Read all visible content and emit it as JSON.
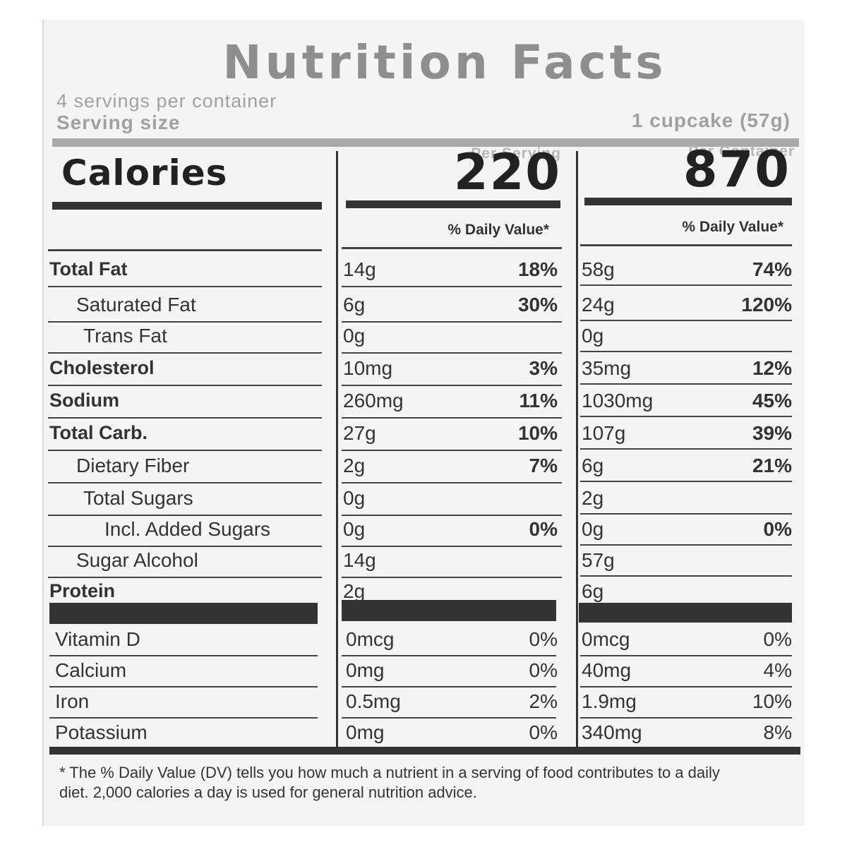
{
  "title": "Nutrition Facts",
  "servings_per_container": "4 servings per container",
  "serving_size_label": "Serving size",
  "serving_size_value": "1 cupcake (57g)",
  "per_serving_label": "Per Serving",
  "per_container_label": "Per Container",
  "calories_label": "Calories",
  "calories_per_serving": "220",
  "calories_per_container": "870",
  "dv_header": "% Daily Value*",
  "nutrients": [
    {
      "name": "Total Fat",
      "serving_amount": "14g",
      "serving_dv": "18%",
      "container_amount": "58g",
      "container_dv": "74%"
    },
    {
      "name": "Saturated Fat",
      "serving_amount": "6g",
      "serving_dv": "30%",
      "container_amount": "24g",
      "container_dv": "120%"
    },
    {
      "name": "Trans Fat",
      "serving_amount": "0g",
      "serving_dv": "",
      "container_amount": "0g",
      "container_dv": ""
    },
    {
      "name": "Cholesterol",
      "serving_amount": "10mg",
      "serving_dv": "3%",
      "container_amount": "35mg",
      "container_dv": "12%"
    },
    {
      "name": "Sodium",
      "serving_amount": "260mg",
      "serving_dv": "11%",
      "container_amount": "1030mg",
      "container_dv": "45%"
    },
    {
      "name": "Total Carb.",
      "serving_amount": "27g",
      "serving_dv": "10%",
      "container_amount": "107g",
      "container_dv": "39%"
    },
    {
      "name": "Dietary Fiber",
      "serving_amount": "2g",
      "serving_dv": "7%",
      "container_amount": "6g",
      "container_dv": "21%"
    },
    {
      "name": "Total Sugars",
      "serving_amount": "0g",
      "serving_dv": "",
      "container_amount": "2g",
      "container_dv": ""
    },
    {
      "name": "Incl. Added Sugars",
      "serving_amount": "0g",
      "serving_dv": "0%",
      "container_amount": "0g",
      "container_dv": "0%"
    },
    {
      "name": "Sugar Alcohol",
      "serving_amount": "14g",
      "serving_dv": "",
      "container_amount": "57g",
      "container_dv": ""
    },
    {
      "name": "Protein",
      "serving_amount": "2g",
      "serving_dv": "",
      "container_amount": "6g",
      "container_dv": ""
    }
  ],
  "vitamins": [
    {
      "name": "Vitamin D",
      "serving_amount": "0mcg",
      "serving_dv": "0%",
      "container_amount": "0mcg",
      "container_dv": "0%"
    },
    {
      "name": "Calcium",
      "serving_amount": "0mg",
      "serving_dv": "0%",
      "container_amount": "40mg",
      "container_dv": "4%"
    },
    {
      "name": "Iron",
      "serving_amount": "0.5mg",
      "serving_dv": "2%",
      "container_amount": "1.9mg",
      "container_dv": "10%"
    },
    {
      "name": "Potassium",
      "serving_amount": "0mg",
      "serving_dv": "0%",
      "container_amount": "340mg",
      "container_dv": "8%"
    }
  ],
  "footnote": "* The % Daily Value (DV) tells you how much a nutrient in a serving of food contributes to a daily diet. 2,000 calories a day is used for general nutrition advice."
}
